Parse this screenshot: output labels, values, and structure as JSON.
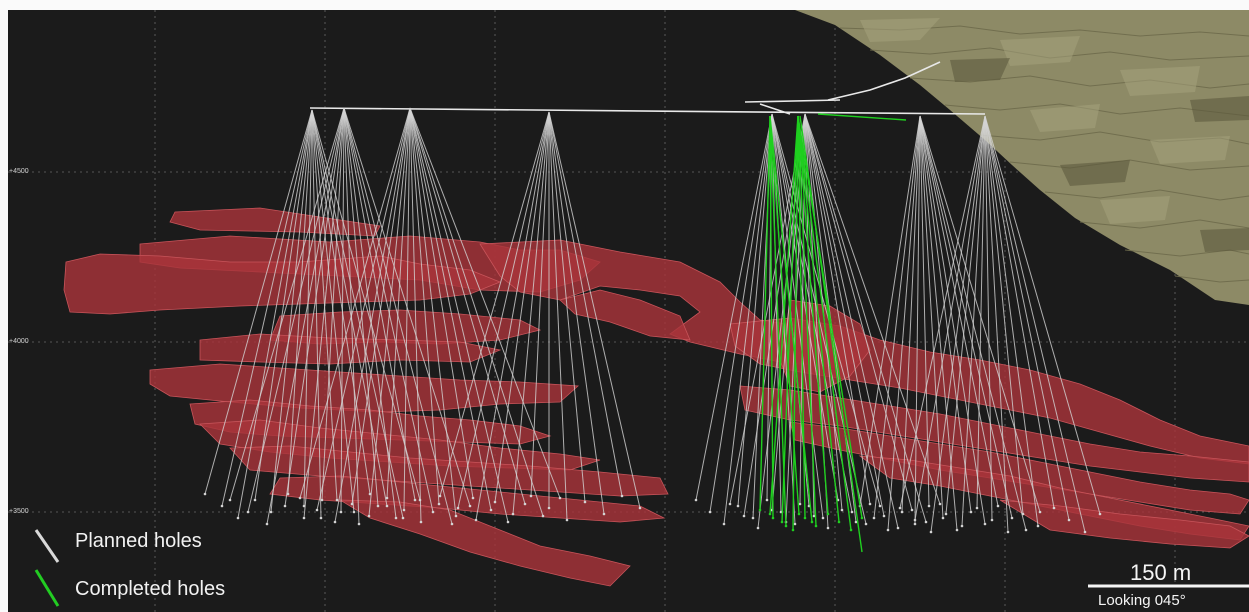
{
  "elevation_labels": [
    "+4500",
    "+4000",
    "+3500"
  ],
  "legend": {
    "planned_label": "Planned holes",
    "completed_label": "Completed holes",
    "planned_color": "#d9d9d9",
    "completed_color": "#22cc22"
  },
  "scale_bar": {
    "label": "150 m"
  },
  "view_direction": "Looking 045°",
  "colors": {
    "background": "#1c1c1c",
    "ore_body": "#a8353a",
    "pit_surface": "#8d8a66",
    "grid": "#6a6a6a"
  }
}
